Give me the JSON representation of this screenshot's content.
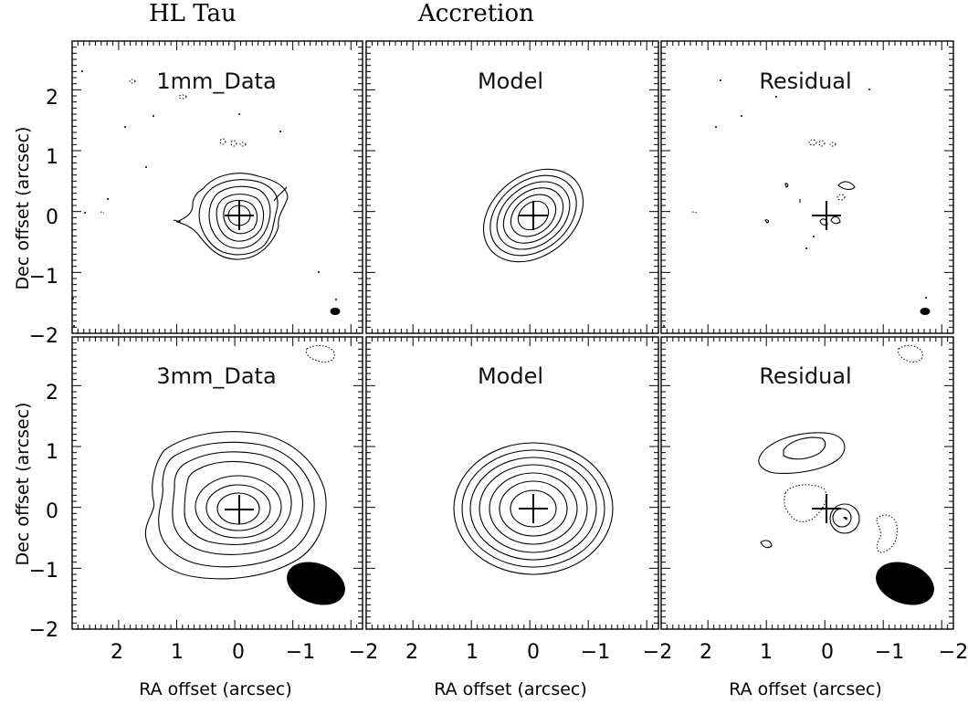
{
  "header": {
    "object": "HL Tau",
    "model_name": "Accretion"
  },
  "columns": [
    "Data",
    "Model",
    "Residual"
  ],
  "rows": [
    {
      "band": "1mm",
      "titles": [
        "1mm_Data",
        "Model",
        "Residual"
      ]
    },
    {
      "band": "3mm",
      "titles": [
        "3mm_Data",
        "Model",
        "Residual"
      ]
    }
  ],
  "axes": {
    "xlabel": "RA offset (arcsec)",
    "ylabel": "Dec offset (arcsec)",
    "xticks": [
      "2",
      "1",
      "0",
      "−1",
      "−2"
    ],
    "yticks": [
      "2",
      "1",
      "0",
      "−1",
      "−2"
    ],
    "xlim": [
      2.8,
      -2.2
    ],
    "ylim": [
      -2.0,
      2.8
    ]
  },
  "colors": {
    "contour": "#000000",
    "background": "#ffffff"
  },
  "marker": "cross-icon",
  "contour_styles": {
    "positive": "solid",
    "negative": "dotted"
  },
  "beam": "filled black ellipse (lower right)"
}
